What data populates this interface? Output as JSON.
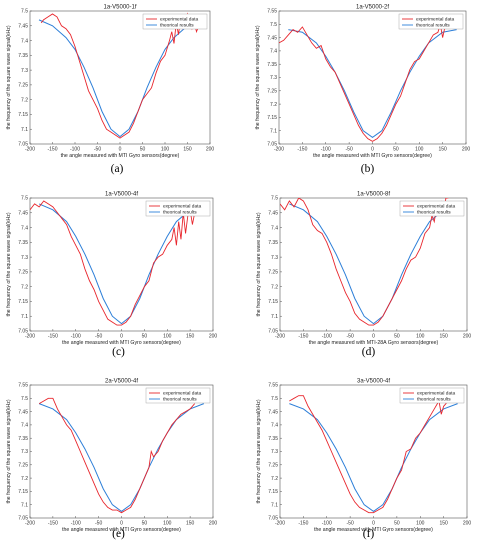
{
  "figure": {
    "panels": [
      "(a)",
      "(b)",
      "(c)",
      "(d)",
      "(e)",
      "(f)"
    ]
  },
  "colors": {
    "experimental": "#e8262d",
    "theoretical": "#2d7fd8",
    "axis": "#555555"
  },
  "chart_data": [
    {
      "type": "line",
      "label": "(a)",
      "title": "1a-V5000-1f",
      "xlabel": "the angle measured with MTI Gyro sensors(degree)",
      "ylabel": "the frequency of the square wave signal(kHz)",
      "xlim": [
        -200,
        200
      ],
      "ylim": [
        7.05,
        7.5
      ],
      "xticks": [
        -200,
        -150,
        -100,
        -50,
        0,
        50,
        100,
        150,
        200
      ],
      "yticks": [
        7.05,
        7.1,
        7.15,
        7.2,
        7.25,
        7.3,
        7.35,
        7.4,
        7.45,
        7.5
      ],
      "legend": "top-right",
      "series": [
        {
          "name": "experimental data",
          "x": [
            -175,
            -170,
            -160,
            -150,
            -140,
            -130,
            -120,
            -110,
            -100,
            -90,
            -80,
            -70,
            -60,
            -50,
            -40,
            -30,
            -20,
            -10,
            0,
            10,
            20,
            30,
            40,
            50,
            60,
            70,
            80,
            90,
            100,
            110,
            115,
            120,
            125,
            130,
            135,
            140,
            145,
            150,
            155,
            160,
            165,
            170,
            175
          ],
          "y": [
            7.46,
            7.47,
            7.48,
            7.49,
            7.48,
            7.45,
            7.44,
            7.42,
            7.38,
            7.33,
            7.28,
            7.23,
            7.2,
            7.17,
            7.13,
            7.1,
            7.09,
            7.08,
            7.07,
            7.08,
            7.09,
            7.12,
            7.16,
            7.2,
            7.22,
            7.24,
            7.29,
            7.33,
            7.35,
            7.4,
            7.43,
            7.39,
            7.46,
            7.42,
            7.48,
            7.44,
            7.45,
            7.49,
            7.47,
            7.44,
            7.46,
            7.43,
            7.45
          ]
        },
        {
          "name": "theorical results",
          "x": [
            -180,
            -150,
            -120,
            -100,
            -80,
            -60,
            -40,
            -20,
            0,
            20,
            40,
            60,
            80,
            100,
            120,
            150,
            180
          ],
          "y": [
            7.47,
            7.45,
            7.41,
            7.37,
            7.31,
            7.24,
            7.16,
            7.1,
            7.075,
            7.1,
            7.16,
            7.24,
            7.31,
            7.37,
            7.41,
            7.45,
            7.47
          ]
        }
      ]
    },
    {
      "type": "line",
      "label": "(b)",
      "title": "1a-V5000-2f",
      "xlabel": "the angle measured with MTI Gyro sensors(degree)",
      "ylabel": "the frequency of the square wave signal(kHz)",
      "xlim": [
        -200,
        200
      ],
      "ylim": [
        7.05,
        7.55
      ],
      "xticks": [
        -200,
        -150,
        -100,
        -50,
        0,
        50,
        100,
        150,
        200
      ],
      "yticks": [
        7.05,
        7.1,
        7.15,
        7.2,
        7.25,
        7.3,
        7.35,
        7.4,
        7.45,
        7.5,
        7.55
      ],
      "legend": "top-right",
      "series": [
        {
          "name": "experimental data",
          "x": [
            -200,
            -190,
            -180,
            -170,
            -160,
            -150,
            -140,
            -130,
            -120,
            -110,
            -100,
            -90,
            -80,
            -70,
            -60,
            -50,
            -40,
            -30,
            -20,
            -10,
            0,
            10,
            20,
            30,
            40,
            50,
            60,
            70,
            80,
            90,
            100,
            110,
            120,
            130,
            140,
            145,
            150,
            155,
            160
          ],
          "y": [
            7.43,
            7.44,
            7.46,
            7.48,
            7.47,
            7.49,
            7.46,
            7.43,
            7.41,
            7.42,
            7.37,
            7.34,
            7.32,
            7.28,
            7.24,
            7.2,
            7.16,
            7.12,
            7.09,
            7.07,
            7.06,
            7.07,
            7.09,
            7.12,
            7.16,
            7.2,
            7.23,
            7.28,
            7.33,
            7.36,
            7.37,
            7.4,
            7.43,
            7.46,
            7.47,
            7.5,
            7.45,
            7.49,
            7.5
          ]
        },
        {
          "name": "theorical results",
          "x": [
            -180,
            -150,
            -120,
            -100,
            -80,
            -60,
            -40,
            -20,
            0,
            20,
            40,
            60,
            80,
            100,
            120,
            150,
            180
          ],
          "y": [
            7.48,
            7.47,
            7.43,
            7.38,
            7.32,
            7.25,
            7.17,
            7.1,
            7.075,
            7.1,
            7.17,
            7.25,
            7.32,
            7.38,
            7.43,
            7.47,
            7.48
          ]
        }
      ]
    },
    {
      "type": "line",
      "label": "(c)",
      "title": "1a-V5000-4f",
      "xlabel": "the angle measured with MTI Gyro sensors(degree)",
      "ylabel": "the frequency of the square wave signal(kHz)",
      "xlim": [
        -200,
        200
      ],
      "ylim": [
        7.05,
        7.5
      ],
      "xticks": [
        -200,
        -150,
        -100,
        -50,
        0,
        50,
        100,
        150,
        200
      ],
      "yticks": [
        7.05,
        7.1,
        7.15,
        7.2,
        7.25,
        7.3,
        7.35,
        7.4,
        7.45,
        7.5
      ],
      "legend": "top-right",
      "series": [
        {
          "name": "experimental data",
          "x": [
            -200,
            -190,
            -180,
            -170,
            -160,
            -150,
            -140,
            -130,
            -120,
            -110,
            -100,
            -90,
            -80,
            -70,
            -60,
            -50,
            -40,
            -30,
            -20,
            -10,
            0,
            10,
            20,
            30,
            40,
            50,
            60,
            70,
            80,
            90,
            100,
            110,
            115,
            120,
            125,
            130,
            135,
            140,
            145,
            150,
            155,
            160
          ],
          "y": [
            7.46,
            7.48,
            7.47,
            7.49,
            7.48,
            7.47,
            7.45,
            7.43,
            7.41,
            7.37,
            7.34,
            7.31,
            7.26,
            7.22,
            7.19,
            7.15,
            7.12,
            7.09,
            7.08,
            7.07,
            7.07,
            7.08,
            7.1,
            7.14,
            7.17,
            7.2,
            7.22,
            7.28,
            7.3,
            7.31,
            7.34,
            7.36,
            7.4,
            7.34,
            7.42,
            7.36,
            7.45,
            7.38,
            7.44,
            7.46,
            7.41,
            7.45
          ]
        },
        {
          "name": "theorical results",
          "x": [
            -180,
            -150,
            -120,
            -100,
            -80,
            -60,
            -40,
            -20,
            0,
            20,
            40,
            60,
            80,
            100,
            120,
            150,
            180
          ],
          "y": [
            7.48,
            7.46,
            7.42,
            7.37,
            7.31,
            7.24,
            7.16,
            7.1,
            7.075,
            7.1,
            7.16,
            7.24,
            7.31,
            7.37,
            7.42,
            7.46,
            7.48
          ]
        }
      ]
    },
    {
      "type": "line",
      "label": "(d)",
      "title": "1a-V5000-8f",
      "xlabel": "the angle measured with MTI-28A Gyro sensors(degree)",
      "ylabel": "the frequency of the square wave signal(kHz)",
      "xlim": [
        -200,
        200
      ],
      "ylim": [
        7.05,
        7.5
      ],
      "xticks": [
        -200,
        -150,
        -100,
        -50,
        0,
        50,
        100,
        150,
        200
      ],
      "yticks": [
        7.05,
        7.1,
        7.15,
        7.2,
        7.25,
        7.3,
        7.35,
        7.4,
        7.45,
        7.5
      ],
      "legend": "top-right",
      "series": [
        {
          "name": "experimental data",
          "x": [
            -200,
            -190,
            -180,
            -170,
            -160,
            -150,
            -140,
            -130,
            -120,
            -110,
            -100,
            -90,
            -80,
            -70,
            -60,
            -50,
            -40,
            -30,
            -20,
            -10,
            0,
            10,
            20,
            30,
            40,
            50,
            60,
            70,
            80,
            90,
            100,
            110,
            120,
            125,
            130,
            135,
            140,
            145,
            150,
            155,
            160
          ],
          "y": [
            7.48,
            7.46,
            7.49,
            7.47,
            7.5,
            7.49,
            7.46,
            7.41,
            7.39,
            7.38,
            7.35,
            7.31,
            7.26,
            7.22,
            7.18,
            7.15,
            7.11,
            7.09,
            7.08,
            7.07,
            7.07,
            7.08,
            7.1,
            7.13,
            7.16,
            7.19,
            7.22,
            7.26,
            7.29,
            7.3,
            7.33,
            7.38,
            7.4,
            7.44,
            7.42,
            7.47,
            7.44,
            7.49,
            7.46,
            7.5,
            7.5
          ]
        },
        {
          "name": "theorical results",
          "x": [
            -180,
            -150,
            -120,
            -100,
            -80,
            -60,
            -40,
            -20,
            0,
            20,
            40,
            60,
            80,
            100,
            120,
            150,
            180
          ],
          "y": [
            7.48,
            7.46,
            7.42,
            7.37,
            7.31,
            7.24,
            7.16,
            7.1,
            7.075,
            7.1,
            7.16,
            7.24,
            7.31,
            7.37,
            7.42,
            7.46,
            7.48
          ]
        }
      ]
    },
    {
      "type": "line",
      "label": "(e)",
      "title": "2a-V5000-4f",
      "xlabel": "the angle measured with MTI Gyro sensors(degree)",
      "ylabel": "the frequency of the square wave signal(kHz)",
      "xlim": [
        -200,
        200
      ],
      "ylim": [
        7.05,
        7.55
      ],
      "xticks": [
        -200,
        -150,
        -100,
        -50,
        0,
        50,
        100,
        150,
        200
      ],
      "yticks": [
        7.05,
        7.1,
        7.15,
        7.2,
        7.25,
        7.3,
        7.35,
        7.4,
        7.45,
        7.5,
        7.55
      ],
      "legend": "top-right",
      "series": [
        {
          "name": "experimental data",
          "x": [
            -180,
            -170,
            -160,
            -150,
            -140,
            -130,
            -120,
            -110,
            -100,
            -90,
            -80,
            -70,
            -60,
            -50,
            -40,
            -30,
            -20,
            -10,
            0,
            10,
            20,
            30,
            40,
            50,
            60,
            65,
            70,
            80,
            90,
            100,
            110,
            120,
            130,
            140,
            150,
            155,
            160
          ],
          "y": [
            7.48,
            7.49,
            7.5,
            7.5,
            7.46,
            7.43,
            7.4,
            7.38,
            7.34,
            7.3,
            7.26,
            7.22,
            7.18,
            7.14,
            7.11,
            7.09,
            7.08,
            7.08,
            7.07,
            7.08,
            7.09,
            7.12,
            7.16,
            7.2,
            7.24,
            7.3,
            7.28,
            7.3,
            7.34,
            7.37,
            7.4,
            7.42,
            7.44,
            7.45,
            7.46,
            7.47,
            7.48
          ]
        },
        {
          "name": "theorical results",
          "x": [
            -180,
            -150,
            -120,
            -100,
            -80,
            -60,
            -40,
            -20,
            0,
            20,
            40,
            60,
            80,
            100,
            120,
            150,
            180
          ],
          "y": [
            7.48,
            7.46,
            7.42,
            7.37,
            7.31,
            7.24,
            7.16,
            7.1,
            7.075,
            7.1,
            7.16,
            7.24,
            7.31,
            7.37,
            7.42,
            7.46,
            7.48
          ]
        }
      ]
    },
    {
      "type": "line",
      "label": "(f)",
      "title": "3a-V5000-4f",
      "xlabel": "the angle measured with MTI Gyro sensors(degree)",
      "ylabel": "the frequency of the square wave signal(kHz)",
      "xlim": [
        -200,
        200
      ],
      "ylim": [
        7.05,
        7.55
      ],
      "xticks": [
        -200,
        -150,
        -100,
        -50,
        0,
        50,
        100,
        150,
        200
      ],
      "yticks": [
        7.05,
        7.1,
        7.15,
        7.2,
        7.25,
        7.3,
        7.35,
        7.4,
        7.45,
        7.5,
        7.55
      ],
      "legend": "top-right",
      "series": [
        {
          "name": "experimental data",
          "x": [
            -180,
            -170,
            -160,
            -150,
            -140,
            -130,
            -120,
            -110,
            -100,
            -90,
            -80,
            -70,
            -60,
            -50,
            -40,
            -30,
            -20,
            -10,
            0,
            10,
            20,
            30,
            40,
            50,
            60,
            70,
            80,
            90,
            100,
            110,
            120,
            130,
            140,
            145,
            150,
            155,
            160
          ],
          "y": [
            7.49,
            7.5,
            7.51,
            7.51,
            7.47,
            7.44,
            7.41,
            7.38,
            7.34,
            7.3,
            7.26,
            7.22,
            7.18,
            7.14,
            7.11,
            7.09,
            7.08,
            7.07,
            7.07,
            7.08,
            7.09,
            7.12,
            7.16,
            7.2,
            7.23,
            7.3,
            7.31,
            7.35,
            7.37,
            7.4,
            7.43,
            7.46,
            7.49,
            7.44,
            7.47,
            7.48,
            7.5
          ]
        },
        {
          "name": "theorical results",
          "x": [
            -180,
            -150,
            -120,
            -100,
            -80,
            -60,
            -40,
            -20,
            0,
            20,
            40,
            60,
            80,
            100,
            120,
            150,
            180
          ],
          "y": [
            7.48,
            7.46,
            7.42,
            7.37,
            7.31,
            7.24,
            7.16,
            7.1,
            7.075,
            7.1,
            7.16,
            7.24,
            7.31,
            7.37,
            7.42,
            7.46,
            7.48
          ]
        }
      ]
    }
  ]
}
